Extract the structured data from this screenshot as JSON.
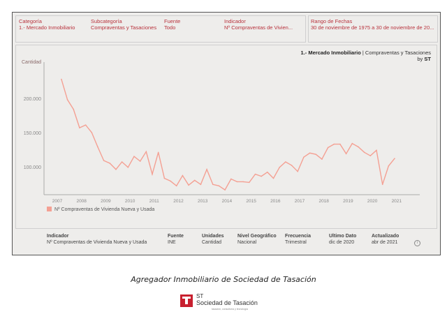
{
  "filters": [
    {
      "label": "Categoría",
      "value": "1.- Mercado Inmobiliario"
    },
    {
      "label": "Subcategoría",
      "value": "Compraventas y Tasaciones"
    },
    {
      "label": "Fuente",
      "value": "Todo"
    },
    {
      "label": "Indicador",
      "value": "Nº Compraventas de Vivien..."
    }
  ],
  "date_range": {
    "label": "Rango de Fechas",
    "value": "30 de noviembre de 1975 a 30 de noviembre de 20..."
  },
  "chart_header": {
    "title": "1.- Mercado Inmobiliario",
    "sep": " | ",
    "subtitle": "Compraventas y Tasaciones",
    "by": "by ",
    "brand": "ST"
  },
  "info": [
    {
      "label": "Indicador",
      "value": "Nº Compraventas de Vivienda Nueva y Usada"
    },
    {
      "label": "Fuente",
      "value": "INE"
    },
    {
      "label": "Unidades",
      "value": "Cantidad"
    },
    {
      "label": "Nivel Geográfico",
      "value": "Nacional"
    },
    {
      "label": "Frecuencia",
      "value": "Trimestral"
    },
    {
      "label": "Ultimo Dato",
      "value": "dic de 2020"
    },
    {
      "label": "Actualizado",
      "value": "abr de 2021"
    }
  ],
  "caption": "Agregador Inmobiliario de Sociedad de Tasación",
  "logo": {
    "st": "ST",
    "name": "Sociedad de Tasación",
    "tagline": "tasación, consultoría y tecnología"
  },
  "colors": {
    "accent": "#b8323c",
    "series": "#f4a093"
  },
  "chart_data": {
    "type": "line",
    "ylabel": "Cantidad",
    "ylim": [
      60000,
      250000
    ],
    "yticks": [
      100000,
      150000,
      200000
    ],
    "ytick_labels": [
      "100.000",
      "150.000",
      "200.000"
    ],
    "xticks": [
      2007,
      2008,
      2009,
      2010,
      2011,
      2012,
      2013,
      2014,
      2015,
      2016,
      2017,
      2018,
      2019,
      2020,
      2021
    ],
    "x_start": 2007.17,
    "x_step": 0.25,
    "series": [
      {
        "name": "Nº Compraventas de Vivienda Nueva y Usada",
        "values": [
          229000,
          199000,
          185000,
          158000,
          162000,
          151000,
          130000,
          110000,
          106000,
          97000,
          108000,
          100000,
          116000,
          109000,
          123000,
          90000,
          122000,
          84000,
          80000,
          73000,
          88000,
          74000,
          81000,
          75000,
          97000,
          75000,
          73000,
          67000,
          83000,
          79000,
          79000,
          78000,
          90000,
          87000,
          93000,
          84000,
          100000,
          108000,
          103000,
          94000,
          115000,
          121000,
          119000,
          112000,
          129000,
          134000,
          134000,
          120000,
          135000,
          130000,
          122000,
          117000,
          125000,
          75000,
          102000,
          113000
        ]
      }
    ]
  }
}
